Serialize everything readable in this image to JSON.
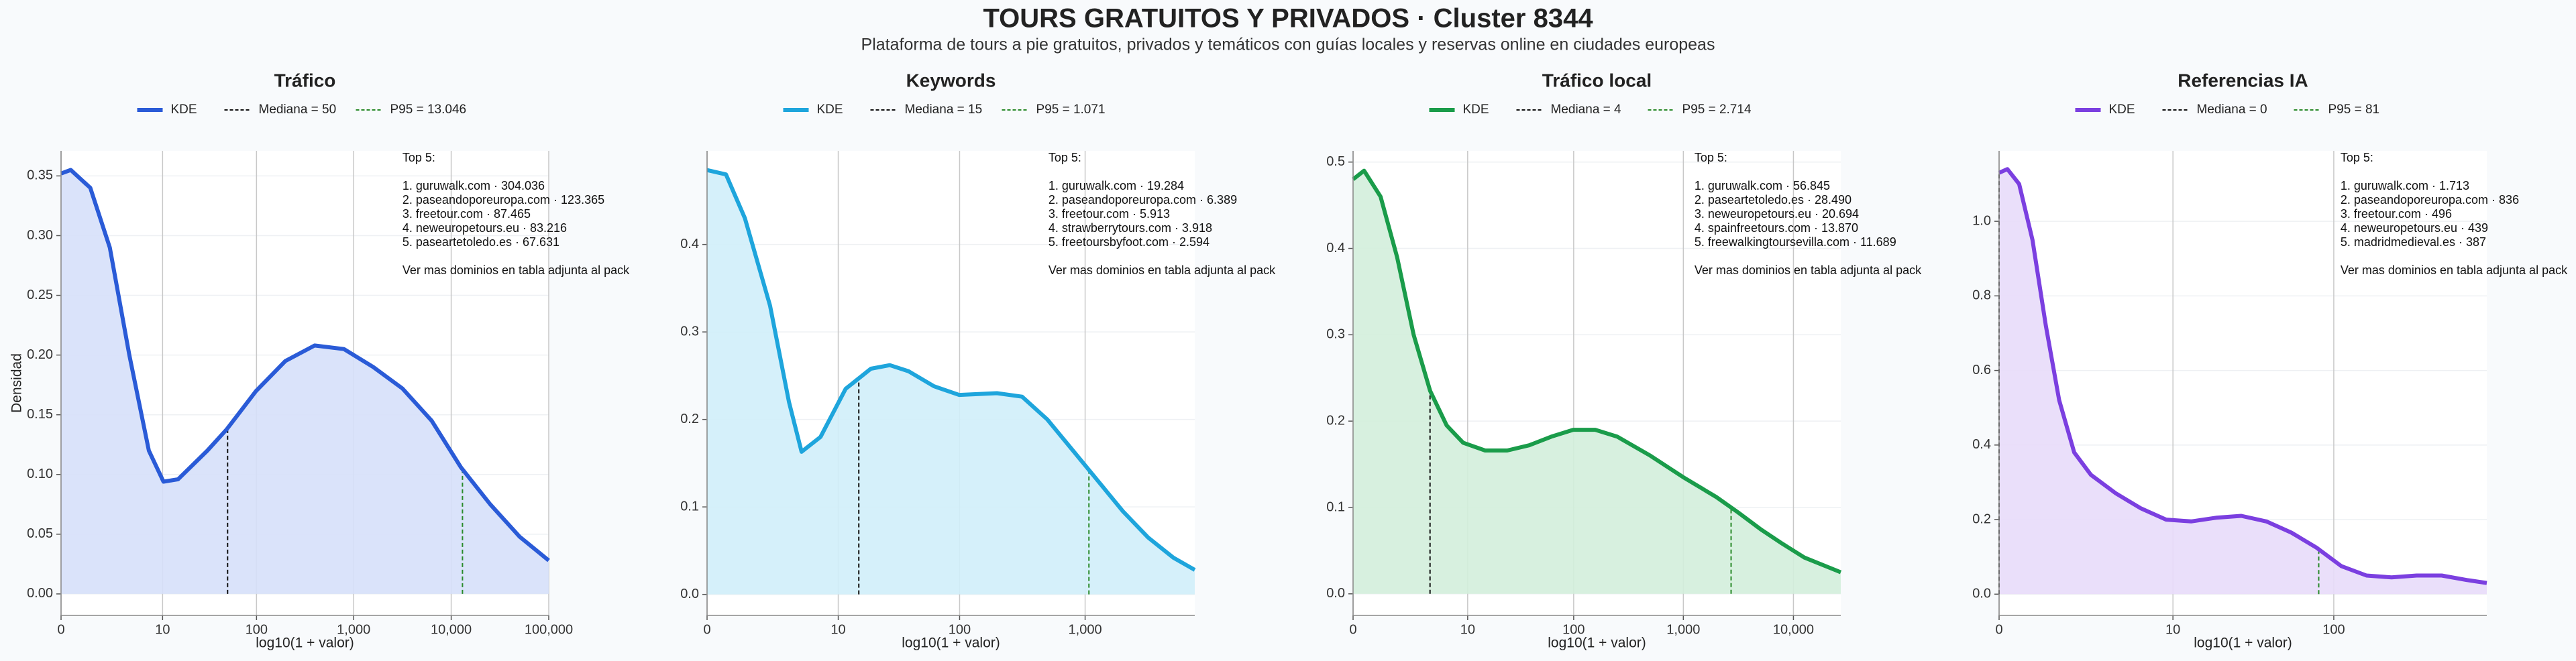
{
  "title": "TOURS GRATUITOS Y PRIVADOS · Cluster 8344",
  "subtitle": "Plataforma de tours a pie gratuitos, privados y temáticos con guías locales y reservas online en ciudades europeas",
  "chart_data": [
    {
      "type": "line",
      "title": "Tráfico",
      "xlabel": "log10(1 + valor)",
      "ylabel": "Densidad",
      "x": [
        0,
        0.1,
        0.3,
        0.5,
        0.7,
        0.9,
        1.05,
        1.2,
        1.5,
        1.7,
        2.0,
        2.3,
        2.6,
        2.9,
        3.2,
        3.5,
        3.8,
        4.1,
        4.4,
        4.7,
        5.0
      ],
      "series": [
        {
          "name": "KDE",
          "color": "#2a5bd7",
          "fill": "#d6e0fa",
          "values": [
            0.352,
            0.355,
            0.34,
            0.29,
            0.2,
            0.12,
            0.094,
            0.096,
            0.12,
            0.138,
            0.17,
            0.195,
            0.208,
            0.205,
            0.19,
            0.172,
            0.145,
            0.106,
            0.075,
            0.048,
            0.028
          ]
        }
      ],
      "median": 50,
      "median_label": "Mediana = 50",
      "p95": 13046,
      "p95_label": "P95 = 13.046",
      "xlim": [
        0,
        5.0
      ],
      "ylim": [
        -0.018,
        0.371
      ],
      "xticks": [
        0,
        {
          "value": 1.041,
          "label": "10"
        },
        {
          "value": 2.004,
          "label": "100"
        },
        {
          "value": 3,
          "label": "1,000"
        },
        {
          "value": 4,
          "label": "10,000"
        },
        {
          "value": 5,
          "label": "100,000"
        }
      ],
      "yticks": [
        {
          "value": 0,
          "label": "0.00"
        },
        0.05,
        {
          "value": 0.1,
          "label": "0.10"
        },
        0.15,
        {
          "value": 0.2,
          "label": "0.20"
        },
        0.25,
        {
          "value": 0.3,
          "label": "0.30"
        },
        0.35
      ],
      "grid": true,
      "annotation": {
        "title": "Top 5:",
        "items": [
          "1. guruwalk.com · 304.036",
          "2. paseandoporeuropa.com · 123.365",
          "3. freetour.com · 87.465",
          "4. neweuropetours.eu · 83.216",
          "5. paseartetoledo.es · 67.631"
        ],
        "note": "Ver mas dominios en tabla adjunta al pack"
      }
    },
    {
      "type": "line",
      "title": "Keywords",
      "xlabel": "log10(1 + valor)",
      "x": [
        0,
        0.15,
        0.3,
        0.5,
        0.65,
        0.75,
        0.9,
        1.1,
        1.3,
        1.45,
        1.6,
        1.8,
        2.0,
        2.3,
        2.5,
        2.7,
        2.9,
        3.1,
        3.3,
        3.5,
        3.7,
        3.87
      ],
      "series": [
        {
          "name": "KDE",
          "color": "#1ea5dc",
          "fill": "#d0eefa",
          "values": [
            0.485,
            0.48,
            0.43,
            0.33,
            0.22,
            0.163,
            0.18,
            0.235,
            0.258,
            0.262,
            0.255,
            0.238,
            0.228,
            0.23,
            0.226,
            0.2,
            0.165,
            0.13,
            0.095,
            0.065,
            0.042,
            0.028
          ]
        }
      ],
      "median": 15,
      "median_label": "Mediana = 15",
      "p95": 1071,
      "p95_label": "P95 = 1.071",
      "xlim": [
        0,
        3.87
      ],
      "ylim": [
        -0.024,
        0.507
      ],
      "xticks": [
        0,
        {
          "value": 1.041,
          "label": "10"
        },
        {
          "value": 2.004,
          "label": "100"
        },
        {
          "value": 3,
          "label": "1,000"
        }
      ],
      "yticks": [
        {
          "value": 0,
          "label": "0.0"
        },
        0.1,
        0.2,
        0.3,
        0.4
      ],
      "grid": true,
      "annotation": {
        "title": "Top 5:",
        "items": [
          "1. guruwalk.com · 19.284",
          "2. paseandoporeuropa.com · 6.389",
          "3. freetour.com · 5.913",
          "4. strawberrytours.com · 3.918",
          "5. freetoursbyfoot.com · 2.594"
        ],
        "note": "Ver mas dominios en tabla adjunta al pack"
      }
    },
    {
      "type": "line",
      "title": "Tráfico local",
      "xlabel": "log10(1 + valor)",
      "x": [
        0,
        0.1,
        0.25,
        0.4,
        0.55,
        0.7,
        0.85,
        1.0,
        1.2,
        1.4,
        1.6,
        1.8,
        2.0,
        2.2,
        2.4,
        2.7,
        3.0,
        3.3,
        3.5,
        3.7,
        3.9,
        4.1,
        4.43
      ],
      "series": [
        {
          "name": "KDE",
          "color": "#1a9c4a",
          "fill": "#d3eedb",
          "values": [
            0.48,
            0.49,
            0.46,
            0.39,
            0.3,
            0.235,
            0.195,
            0.175,
            0.166,
            0.166,
            0.172,
            0.182,
            0.19,
            0.19,
            0.182,
            0.16,
            0.135,
            0.112,
            0.094,
            0.075,
            0.058,
            0.042,
            0.025
          ]
        }
      ],
      "median": 4,
      "median_label": "Mediana = 4",
      "p95": 2714,
      "p95_label": "P95 = 2.714",
      "xlim": [
        0,
        4.43
      ],
      "ylim": [
        -0.025,
        0.513
      ],
      "xticks": [
        0,
        {
          "value": 1.041,
          "label": "10"
        },
        {
          "value": 2.004,
          "label": "100"
        },
        {
          "value": 3,
          "label": "1,000"
        },
        {
          "value": 4,
          "label": "10,000"
        }
      ],
      "yticks": [
        {
          "value": 0,
          "label": "0.0"
        },
        0.1,
        0.2,
        0.3,
        0.4,
        0.5
      ],
      "grid": true,
      "annotation": {
        "title": "Top 5:",
        "items": [
          "1. guruwalk.com · 56.845",
          "2. paseartetoledo.es · 28.490",
          "3. neweuropetours.eu · 20.694",
          "4. spainfreetours.com · 13.870",
          "5. freewalkingtoursevilla.com · 11.689"
        ],
        "note": "Ver mas dominios en tabla adjunta al pack"
      }
    },
    {
      "type": "line",
      "title": "Referencias IA",
      "xlabel": "log10(1 + valor)",
      "x": [
        0,
        0.05,
        0.12,
        0.2,
        0.28,
        0.36,
        0.45,
        0.55,
        0.7,
        0.85,
        1.0,
        1.15,
        1.3,
        1.45,
        1.6,
        1.75,
        1.9,
        2.05,
        2.2,
        2.35,
        2.5,
        2.65,
        2.8,
        2.92
      ],
      "series": [
        {
          "name": "KDE",
          "color": "#7b3fe0",
          "fill": "#e8dcfa",
          "values": [
            1.13,
            1.14,
            1.1,
            0.95,
            0.72,
            0.52,
            0.38,
            0.32,
            0.27,
            0.23,
            0.2,
            0.195,
            0.205,
            0.21,
            0.195,
            0.165,
            0.125,
            0.075,
            0.05,
            0.045,
            0.05,
            0.05,
            0.038,
            0.03
          ]
        }
      ],
      "median": 0,
      "median_label": "Mediana = 0",
      "p95": 81,
      "p95_label": "P95 = 81",
      "xlim": [
        0,
        2.92
      ],
      "ylim": [
        -0.057,
        1.189
      ],
      "xticks": [
        0,
        {
          "value": 1.041,
          "label": "10"
        },
        {
          "value": 2.004,
          "label": "100"
        }
      ],
      "yticks": [
        {
          "value": 0,
          "label": "0.0"
        },
        0.2,
        0.4,
        0.6,
        0.8,
        {
          "value": 1,
          "label": "1.0"
        }
      ],
      "grid": true,
      "annotation": {
        "title": "Top 5:",
        "items": [
          "1. guruwalk.com · 1.713",
          "2. paseandoporeuropa.com · 836",
          "3. freetour.com · 496",
          "4. neweuropetours.eu · 439",
          "5. madridmedieval.es · 387"
        ],
        "note": "Ver mas dominios en tabla adjunta al pack"
      }
    }
  ]
}
